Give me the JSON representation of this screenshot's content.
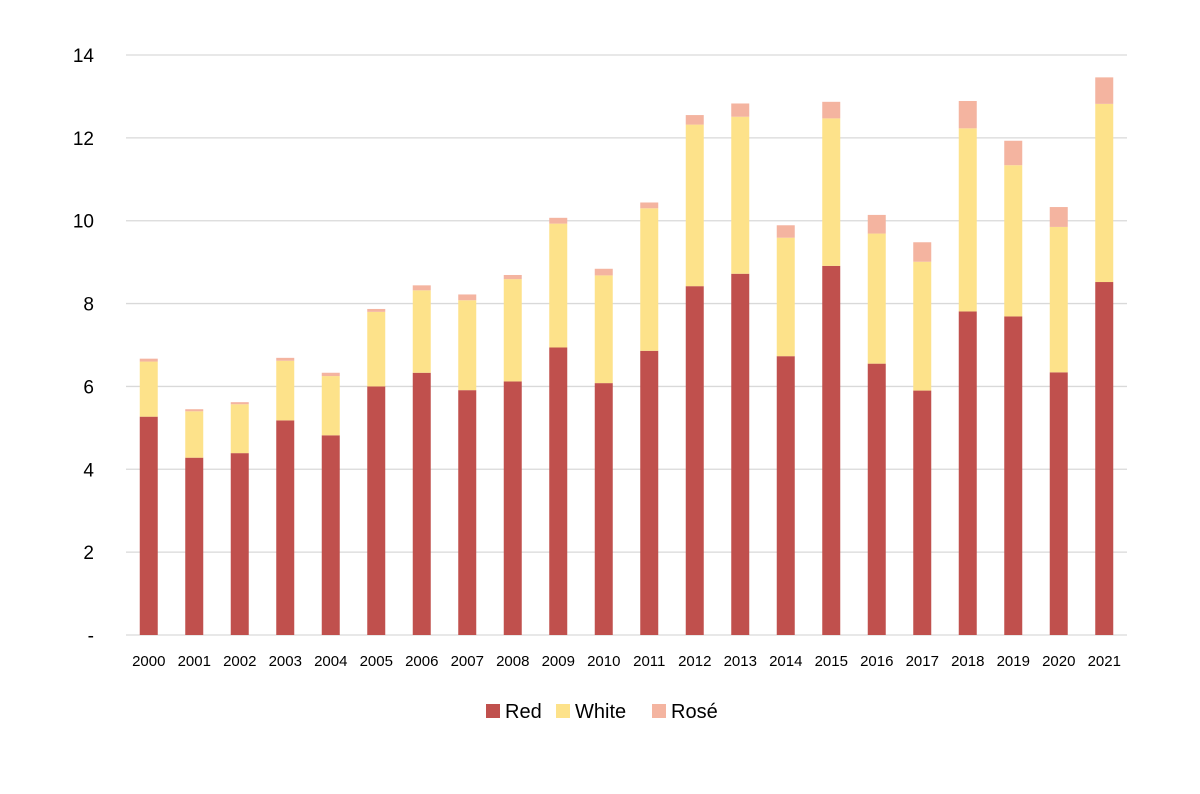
{
  "chart_data": {
    "type": "bar",
    "stacked": true,
    "categories": [
      "2000",
      "2001",
      "2002",
      "2003",
      "2004",
      "2005",
      "2006",
      "2007",
      "2008",
      "2009",
      "2010",
      "2011",
      "2012",
      "2013",
      "2014",
      "2015",
      "2016",
      "2017",
      "2018",
      "2019",
      "2020",
      "2021"
    ],
    "series": [
      {
        "name": "Red",
        "color": "#c0504d",
        "values": [
          5.27,
          4.28,
          4.39,
          5.18,
          4.82,
          6.0,
          6.33,
          5.91,
          6.12,
          6.94,
          6.08,
          6.86,
          8.42,
          8.72,
          6.73,
          8.91,
          6.55,
          5.9,
          7.81,
          7.69,
          6.34,
          8.52
        ]
      },
      {
        "name": "White",
        "color": "#fde28a",
        "values": [
          1.33,
          1.12,
          1.18,
          1.44,
          1.43,
          1.8,
          1.99,
          2.17,
          2.47,
          2.99,
          2.6,
          3.44,
          3.9,
          3.79,
          2.86,
          3.56,
          3.14,
          3.11,
          4.42,
          3.65,
          3.51,
          4.3
        ]
      },
      {
        "name": "Rosé",
        "color": "#f4b4a0",
        "values": [
          0.07,
          0.05,
          0.05,
          0.07,
          0.08,
          0.07,
          0.12,
          0.14,
          0.1,
          0.14,
          0.16,
          0.14,
          0.23,
          0.32,
          0.3,
          0.4,
          0.45,
          0.47,
          0.66,
          0.59,
          0.48,
          0.64
        ]
      }
    ],
    "yticks": [
      {
        "value": 0,
        "label": "-"
      },
      {
        "value": 2,
        "label": "2"
      },
      {
        "value": 4,
        "label": "4"
      },
      {
        "value": 6,
        "label": "6"
      },
      {
        "value": 8,
        "label": "8"
      },
      {
        "value": 10,
        "label": "10"
      },
      {
        "value": 12,
        "label": "12"
      },
      {
        "value": 14,
        "label": "14"
      }
    ],
    "ylim": [
      0,
      14
    ],
    "grid": true,
    "legend": {
      "position": "bottom",
      "entries": [
        "Red",
        "White",
        "Rosé"
      ]
    }
  }
}
